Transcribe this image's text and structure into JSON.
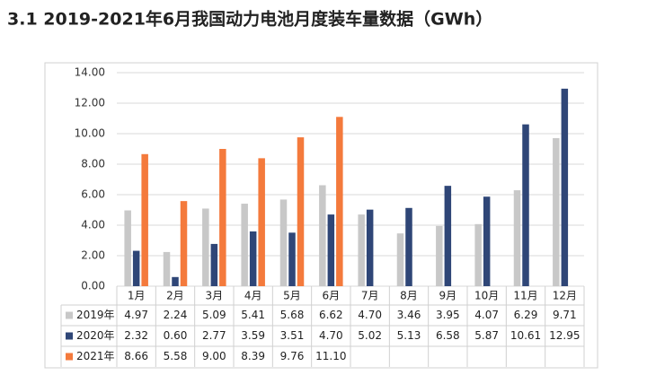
{
  "chart_data": {
    "type": "bar",
    "title": "3.1 2019-2021年6月我国动力电池月度装车量数据（GWh）",
    "categories": [
      "1月",
      "2月",
      "3月",
      "4月",
      "5月",
      "6月",
      "7月",
      "8月",
      "9月",
      "10月",
      "11月",
      "12月"
    ],
    "series": [
      {
        "name": "2019年",
        "color": "#c8c8c8",
        "values": [
          4.97,
          2.24,
          5.09,
          5.41,
          5.68,
          6.62,
          4.7,
          3.46,
          3.95,
          4.07,
          6.29,
          9.71
        ],
        "value_labels": [
          "4.97",
          "2.24",
          "5.09",
          "5.41",
          "5.68",
          "6.62",
          "4.70",
          "3.46",
          "3.95",
          "4.07",
          "6.29",
          "9.71"
        ]
      },
      {
        "name": "2020年",
        "color": "#2f4677",
        "values": [
          2.32,
          0.6,
          2.77,
          3.59,
          3.51,
          4.7,
          5.02,
          5.13,
          6.58,
          5.87,
          10.61,
          12.95
        ],
        "value_labels": [
          "2.32",
          "0.60",
          "2.77",
          "3.59",
          "3.51",
          "4.70",
          "5.02",
          "5.13",
          "6.58",
          "5.87",
          "10.61",
          "12.95"
        ]
      },
      {
        "name": "2021年",
        "color": "#f47a3c",
        "values": [
          8.66,
          5.58,
          9.0,
          8.39,
          9.76,
          11.1,
          null,
          null,
          null,
          null,
          null,
          null
        ],
        "value_labels": [
          "8.66",
          "5.58",
          "9.00",
          "8.39",
          "9.76",
          "11.10",
          null,
          null,
          null,
          null,
          null,
          null
        ]
      }
    ],
    "ylim": [
      0,
      14
    ],
    "yticks": [
      {
        "value": 0,
        "label": "0.00"
      },
      {
        "value": 2,
        "label": "2.00"
      },
      {
        "value": 4,
        "label": "4.00"
      },
      {
        "value": 6,
        "label": "6.00"
      },
      {
        "value": 8,
        "label": "8.00"
      },
      {
        "value": 10,
        "label": "10.00"
      },
      {
        "value": 12,
        "label": "12.00"
      },
      {
        "value": 14,
        "label": "14.00"
      }
    ],
    "grid": true
  }
}
